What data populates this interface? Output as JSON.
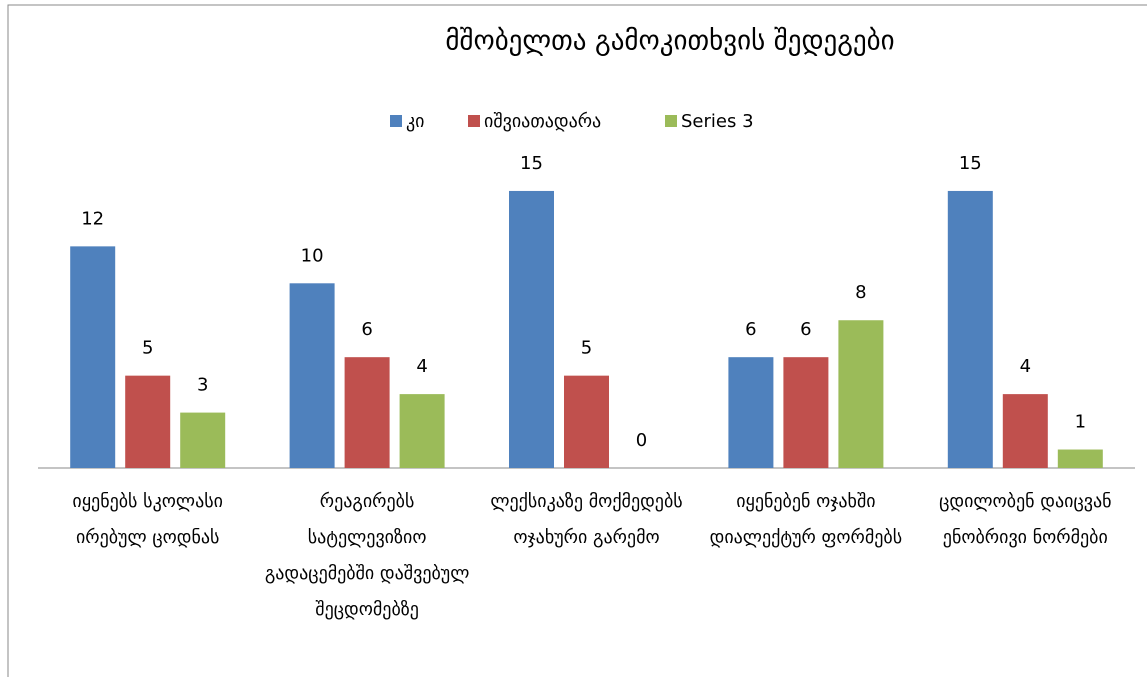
{
  "chart_data": {
    "type": "bar",
    "title": "მშობელთა გამოკითხვის შედეგები",
    "categories": [
      "იყენებს სკოლასი ირებულ ცოდნას",
      "რეაგირებს სატელევიზიო გადაცემებში დაშვებულ შეცდომებზე",
      "ლექსიკაზე მოქმედებს ოჯახური გარემო",
      "იყენებენ ოჯახში დიალექტურ ფორმებს",
      "ცდილობენ დაიცვან ენობრივი ნორმები"
    ],
    "series": [
      {
        "name": "კი",
        "color": "#4f81bd",
        "values": [
          12,
          10,
          15,
          6,
          15
        ]
      },
      {
        "name": "იშვიათადარა",
        "color": "#c0504d",
        "values": [
          5,
          6,
          5,
          6,
          4
        ]
      },
      {
        "name": "Series 3",
        "color": "#9bbb59",
        "values": [
          3,
          4,
          0,
          8,
          1
        ]
      }
    ],
    "legend": "top"
  }
}
